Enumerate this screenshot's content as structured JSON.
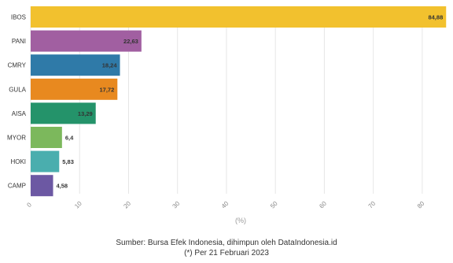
{
  "chart_data": {
    "type": "bar",
    "orientation": "horizontal",
    "categories": [
      "IBOS",
      "PANI",
      "CMRY",
      "GULA",
      "AISA",
      "MYOR",
      "HOKI",
      "CAMP"
    ],
    "values": [
      84.88,
      22.63,
      18.24,
      17.72,
      13.29,
      6.4,
      5.83,
      4.58
    ],
    "value_labels": [
      "84,88",
      "22,63",
      "18,24",
      "17,72",
      "13,29",
      "6,4",
      "5,83",
      "4,58"
    ],
    "colors": [
      "#f2c12e",
      "#a15fa1",
      "#2f7aa8",
      "#e8891f",
      "#24936a",
      "#7cb85c",
      "#4aaeae",
      "#6c58a3"
    ],
    "xlabel": "(%)",
    "xlim": [
      0,
      85
    ],
    "xticks": [
      0,
      10,
      20,
      30,
      40,
      50,
      60,
      70,
      80
    ],
    "grid": true
  },
  "footer": {
    "source": "Sumber: Bursa Efek Indonesia, dihimpun oleh DataIndonesia.id",
    "note": "(*) Per 21 Februari 2023"
  }
}
